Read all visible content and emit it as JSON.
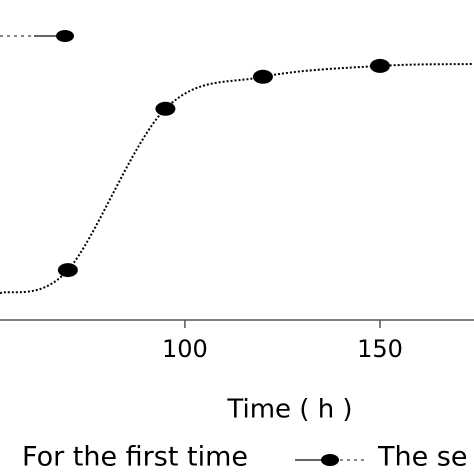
{
  "chart_data": {
    "type": "line",
    "x_label": "Time ( h )",
    "x": [
      52.6,
      70,
      95,
      120,
      150,
      174
    ],
    "series": [
      {
        "color": "#000000",
        "values": [
          8.4,
          15.6,
          66,
          76,
          79.4,
          80
        ],
        "markers": [
          false,
          true,
          true,
          true,
          true,
          false
        ]
      }
    ],
    "legend": [
      "For the first time",
      "The se"
    ],
    "xlim": [
      52.6,
      174.1
    ],
    "ylim": [
      0,
      100
    ],
    "xticks": [
      100,
      150
    ]
  }
}
